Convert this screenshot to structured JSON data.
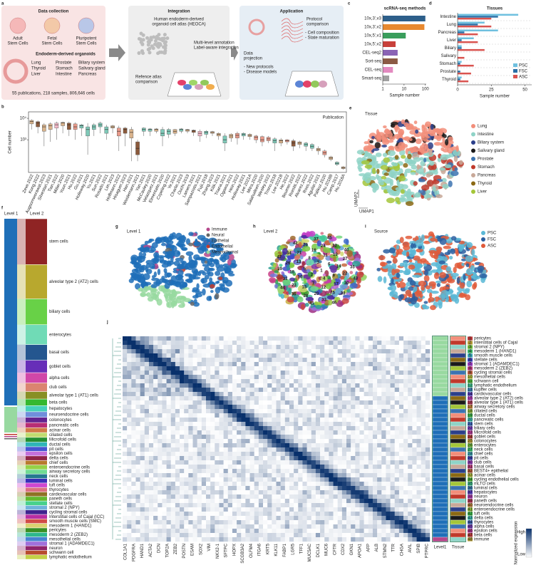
{
  "panel_labels": [
    "a",
    "b",
    "c",
    "d",
    "e",
    "f",
    "g",
    "h",
    "i",
    "j"
  ],
  "a": {
    "collection": {
      "title": "Data collection",
      "sources": [
        [
          "Adult",
          "Stem Cells"
        ],
        [
          "Fetal",
          "Stem Cells"
        ],
        [
          "Pluripotent",
          "Stem Cells"
        ]
      ],
      "organoids": "Endoderm-derived organoids",
      "tissue_columns": [
        [
          "Lung",
          "Thyroid",
          "Liver"
        ],
        [
          "Prostate",
          "Stomach",
          "Intestine"
        ],
        [
          "Biliary system",
          "Salivary gland",
          "Pancreas"
        ]
      ],
      "summary": "55 publications, 218 samples, 806,646 cells"
    },
    "integration": {
      "title": "Integration",
      "atlas": [
        "Human endoderm-derived",
        "organoid cell atlas (HEOCA)"
      ],
      "annotation": [
        "Multi-level annotation",
        "Label-aware integration"
      ],
      "comparison": [
        "Refence atlas",
        "comparison"
      ]
    },
    "application": {
      "title": "Application",
      "protocol": [
        "Protocol",
        "comparison"
      ],
      "protocol_items": [
        "- Cell composition",
        "- State maturation"
      ],
      "projection": [
        "Data",
        "projection"
      ],
      "projection_items": [
        "- New protocols",
        "- Disease models"
      ]
    }
  },
  "chart_data": [
    {
      "type": "hbar",
      "title": "scRNA-seq methods",
      "categories": [
        "10x,3',v3",
        "10x,3',v2",
        "10x,5',v1",
        "10x,5',v2",
        "CEL-seq2",
        "Sort-seq",
        "CEL-seq",
        "Smart-seq"
      ],
      "values": [
        100,
        90,
        12,
        4,
        5,
        5,
        3,
        2
      ],
      "colors": [
        "#2d5f8a",
        "#e8892f",
        "#3a9e5c",
        "#c8403a",
        "#8a63b5",
        "#8b5a44",
        "#e38ac0",
        "#a0a0a0"
      ],
      "xlabel": "Sample number",
      "xlim": [
        1,
        110
      ],
      "xticks": [
        1,
        10,
        100
      ],
      "log": true
    },
    {
      "type": "grouped_hbar",
      "title": "Tissues",
      "categories": [
        "Intestine",
        "Lung",
        "Pancreas",
        "Liver",
        "Biliary",
        "Salivary",
        "Stomach",
        "Prostate",
        "Thyroid"
      ],
      "series": [
        {
          "name": "PSC",
          "color": "#6fc0df",
          "values": [
            45,
            20,
            30,
            12,
            3,
            0,
            3,
            0,
            3
          ]
        },
        {
          "name": "FSC",
          "color": "#2a6fa6",
          "values": [
            30,
            15,
            5,
            3,
            3,
            0,
            2,
            2,
            2
          ]
        },
        {
          "name": "ASC",
          "color": "#d9534f",
          "values": [
            25,
            25,
            15,
            15,
            20,
            5,
            12,
            10,
            8
          ]
        }
      ],
      "xlabel": "Sample number",
      "xlim": [
        0,
        55
      ],
      "xticks": [
        0,
        25,
        50
      ],
      "legend": "lower right"
    },
    {
      "type": "box",
      "title": "Publication",
      "ylabel": "Cell number",
      "log": true,
      "ylim": [
        30,
        20000
      ],
      "yticks": [
        {
          "value": 1000,
          "label": "10³"
        },
        {
          "value": 10000,
          "label": "10⁴"
        }
      ],
      "categories": [
        "Zeve.2022",
        "Kong.2022",
        "Augsornworawat.2023",
        "Silvestari.2021",
        "Tian.2022",
        "Miller.2020",
        "Yoon.2021",
        "Hu.2022",
        "Gu.2021",
        "Holloway.2020",
        "Yu.2021",
        "Sun.2022",
        "Rosado.2021",
        "Lim.2023",
        "Hoffmann.2022",
        "Hisaguer.2023",
        "Han.2021",
        "Weidemann.2021",
        "Yan.2021",
        "McCauley.2020",
        "Velazquez.2021",
        "Elmentaite.2020",
        "Czpeling.2022",
        "Ye.2021",
        "Charlie.2023",
        "Ouchi.2019",
        "Lamers.2021",
        "Sampaziotis.2021",
        "Fujii.2018",
        "Zhang.2023",
        "Kilik.2021",
        "Triana.2021",
        "Ogawa.2021",
        "Hein.2022",
        "Holloway.2021",
        "Lee.2021A",
        "Mitra.2020",
        "Salahudeen.2020",
        "Wesley.2022",
        "Trisno.2018",
        "Lee.2021B",
        "He.2022",
        "Beumer.2022",
        "Romitti.2022",
        "Alvarez.2022",
        "Ross.2022",
        "Aguilar.2021",
        "Palikuz.2020",
        "Hu.2018B",
        "Camp.2017",
        "Hu.2018A"
      ],
      "boxes": [
        [
          3000,
          5500,
          7000,
          8000,
          9000
        ],
        [
          2000,
          4000,
          6000,
          7000,
          8000
        ],
        [
          500,
          2500,
          4000,
          5000,
          6000
        ],
        [
          800,
          3000,
          4500,
          5500,
          6500
        ],
        [
          1000,
          3500,
          5000,
          6000,
          7000
        ],
        [
          2000,
          4500,
          6000,
          6500,
          7000
        ],
        [
          1500,
          3000,
          5000,
          6000,
          7000
        ],
        [
          1000,
          3000,
          4000,
          5500,
          6500
        ],
        [
          1500,
          3500,
          4500,
          5000,
          5500
        ],
        [
          200,
          1500,
          3000,
          4000,
          6000
        ],
        [
          1500,
          3000,
          4000,
          5000,
          6000
        ],
        [
          2000,
          4000,
          5000,
          6000,
          7000
        ],
        [
          1000,
          2000,
          3000,
          4000,
          5000
        ],
        [
          2000,
          3500,
          4000,
          4500,
          5000
        ],
        [
          300,
          1500,
          2500,
          3500,
          4500
        ],
        [
          500,
          2000,
          3000,
          3500,
          4000
        ],
        [
          100,
          1200,
          2200,
          3000,
          4000
        ],
        [
          100,
          200,
          400,
          800,
          1000
        ],
        [
          1500,
          2500,
          3000,
          3500,
          3800
        ],
        [
          1500,
          2500,
          3000,
          3200,
          3500
        ],
        [
          2000,
          2500,
          3000,
          3200,
          3500
        ],
        [
          500,
          1500,
          2000,
          3000,
          4000
        ],
        [
          1200,
          1800,
          2500,
          3000,
          3500
        ],
        [
          1500,
          2000,
          2500,
          3000,
          3200
        ],
        [
          2000,
          2500,
          3000,
          3200,
          3500
        ],
        [
          2000,
          2500,
          2800,
          3000,
          3200
        ],
        [
          1500,
          2200,
          2600,
          2800,
          3000
        ],
        [
          800,
          1500,
          2000,
          2500,
          3000
        ],
        [
          1200,
          1800,
          2200,
          2500,
          2800
        ],
        [
          1500,
          2000,
          2200,
          2400,
          2600
        ],
        [
          1000,
          1500,
          1800,
          2000,
          2200
        ],
        [
          300,
          700,
          1000,
          1500,
          2000
        ],
        [
          800,
          1200,
          1500,
          1800,
          2000
        ],
        [
          600,
          1200,
          1600,
          2000,
          2400
        ],
        [
          1000,
          1500,
          1800,
          2000,
          2200
        ],
        [
          1000,
          1400,
          1600,
          1800,
          2000
        ],
        [
          700,
          1000,
          1300,
          1500,
          1700
        ],
        [
          500,
          800,
          1000,
          1400,
          1600
        ],
        [
          700,
          900,
          1100,
          1300,
          1500
        ],
        [
          300,
          700,
          900,
          1100,
          1300
        ],
        [
          500,
          700,
          900,
          1000,
          1200
        ],
        [
          600,
          800,
          900,
          1000,
          1100
        ],
        [
          300,
          500,
          700,
          900,
          1100
        ],
        [
          400,
          600,
          700,
          800,
          900
        ],
        [
          300,
          500,
          600,
          700,
          800
        ],
        [
          300,
          400,
          500,
          600,
          700
        ],
        [
          200,
          300,
          350,
          400,
          500
        ],
        [
          150,
          200,
          250,
          300,
          350
        ],
        [
          100,
          120,
          140,
          160,
          180
        ],
        [
          60,
          70,
          80,
          90,
          100
        ],
        [
          40,
          45,
          50,
          55,
          60
        ]
      ],
      "colors": [
        "#d9b38c",
        "#8b5a3c",
        "#d9b38c",
        "#d9b38c",
        "#f2b8c6",
        "#d9b38c",
        "#8b5a3c",
        "#e89a8a",
        "#7fc9b8",
        "#7fc9b8",
        "#7fc9b8",
        "#7fc9b8",
        "#7fc9b8",
        "#d9b38c",
        "#e89a8a",
        "#8b5a3c",
        "#d9b38c",
        "#8b5a3c",
        "#7fc9b8",
        "#7fc9b8",
        "#d9b38c",
        "#7fc9b8",
        "#7fc9b8",
        "#d9b38c",
        "#7fc9b8",
        "#d9b38c",
        "#8b5a3c",
        "#f2b8c6",
        "#7fc9b8",
        "#d9b38c",
        "#d9b38c",
        "#7fc9b8",
        "#d9b38c",
        "#e89a8a",
        "#7fc9b8",
        "#d9b38c",
        "#e89a8a",
        "#e89a8a",
        "#e89a8a",
        "#7fc9b8",
        "#d9b38c",
        "#e89a8a",
        "#8b5a3c",
        "#d9b38c",
        "#7fc9b8",
        "#7fc9b8",
        "#d9b38c",
        "#e89a8a",
        "#d9b38c",
        "#7fc9b8",
        "#d9b38c"
      ]
    }
  ],
  "e": {
    "title": "Tissue",
    "axes": [
      "UMAP1",
      "UMAP2"
    ],
    "legend": [
      {
        "name": "Lung",
        "color": "#f28e7a"
      },
      {
        "name": "Intestine",
        "color": "#8fd3c7"
      },
      {
        "name": "Biliary system",
        "color": "#2b3f8a"
      },
      {
        "name": "Salivary gland",
        "color": "#1a1a1a"
      },
      {
        "name": "Prostate",
        "color": "#3c73b0"
      },
      {
        "name": "Stomach",
        "color": "#c0392b"
      },
      {
        "name": "Pancreas",
        "color": "#c8a898"
      },
      {
        "name": "Thyroid",
        "color": "#8b6914"
      },
      {
        "name": "Liver",
        "color": "#a4c639"
      }
    ]
  },
  "f": {
    "level1": "Level 1",
    "level2": "Level 2",
    "level2_labels": [
      "stem cells",
      "alveolar type 2 (AT2) cells",
      "biliary cells",
      "enterocytes",
      "basal cells",
      "goblet cells",
      "alpha cells",
      "club cells",
      "alveolar type 1 (AT1) cells",
      "beta cells",
      "hepatocytes",
      "neuroendocrine cells",
      "colonocytes",
      "pancreatic cells",
      "acinar cells",
      "ciliated cells",
      "Microfold cells",
      "ductal cells",
      "pit cells",
      "epsilon cells",
      "delta cells",
      "chief cells",
      "enteroendocrine cells",
      "airway secretory cells",
      "neck cells",
      "luminal cells",
      "tuft cells",
      "thyrocytes",
      "cardiovascular cells",
      "paneth cells",
      "stellate cells",
      "stromal 2 (NPY)",
      "cycling stromal cells",
      "Interstitial cells of Cajal (ICC)",
      "smooth muscle cells (SMC)",
      "mesoderm 1 (HAND1)",
      "pericytes",
      "mesoderm 2 (ZEB2)",
      "mesothelial cells",
      "stromal 1 (ADAMDEC1)",
      "neuron",
      "schwann cell",
      "lymphatic endothelium"
    ]
  },
  "g": {
    "title": "Level 1",
    "legend": [
      {
        "name": "Immune",
        "color": "#b5478b"
      },
      {
        "name": "Neural",
        "color": "#666666"
      },
      {
        "name": "Epithelial",
        "color": "#1f6fb8"
      },
      {
        "name": "Endothelial",
        "color": "#c0392b"
      },
      {
        "name": "Mesenchymal",
        "color": "#98d9a0"
      }
    ]
  },
  "h": {
    "title": "Level 2",
    "clusters": [
      1,
      2,
      3,
      4,
      5,
      6,
      7,
      8,
      9,
      10,
      11,
      12,
      13,
      14,
      15,
      16,
      17,
      18,
      19,
      20,
      21,
      22,
      23,
      24,
      25,
      26,
      27,
      28,
      29,
      30,
      31,
      32,
      33,
      34,
      35,
      36,
      37,
      38,
      39,
      40,
      41,
      42,
      43,
      44,
      45,
      46,
      47
    ]
  },
  "i": {
    "title": "Source",
    "legend": [
      {
        "name": "PSC",
        "color": "#5bb8d6"
      },
      {
        "name": "FSC",
        "color": "#2a5ea0"
      },
      {
        "name": "ASC",
        "color": "#e05a3a"
      }
    ]
  },
  "j": {
    "genes": [
      "COL1A1",
      "PDGFRA",
      "HAND1",
      "ACTA2",
      "DCN",
      "TOP2A",
      "ZEB2",
      "POSTN",
      "ESAM",
      "SOX2",
      "VIM",
      "NKX2-1",
      "SFTPC",
      "HOPX",
      "SCGB3A2",
      "OLFM4",
      "ITGA6",
      "KRT5",
      "KLK11",
      "FABP1",
      "LGR5",
      "TFF1",
      "MUC5AC",
      "DCLK1",
      "MUC6",
      "CFTR",
      "CDX2",
      "GKN1",
      "APOA1",
      "AFP",
      "ALB",
      "STMN2",
      "TTR",
      "CHGA",
      "AVIL",
      "SPIB",
      "PTPRC"
    ],
    "columns": [
      "Level1",
      "Tissue"
    ],
    "colorbar": {
      "title": "Normalized expression",
      "high": "High",
      "low": "Low"
    },
    "cell_types": [
      {
        "id": 1,
        "name": "pericytes"
      },
      {
        "id": 2,
        "name": "interstitial cells of Cajal"
      },
      {
        "id": 3,
        "name": "stromal 2 (NPY)"
      },
      {
        "id": 4,
        "name": "mesoderm 1 (HAND1)"
      },
      {
        "id": 5,
        "name": "smooth muscle cells"
      },
      {
        "id": 6,
        "name": "stellate cells"
      },
      {
        "id": 7,
        "name": "stromal 1 (ADAMDEC1)"
      },
      {
        "id": 8,
        "name": "mesoderm 2 (ZEB2)"
      },
      {
        "id": 9,
        "name": "cycling stromal cells"
      },
      {
        "id": 10,
        "name": "mesothelial cells"
      },
      {
        "id": 11,
        "name": "schwann cell"
      },
      {
        "id": 12,
        "name": "lymphatic endothelium"
      },
      {
        "id": 13,
        "name": "kupffer cells"
      },
      {
        "id": 14,
        "name": "cardiovascular cells"
      },
      {
        "id": 15,
        "name": "alveolar type 2 (AT2) cells"
      },
      {
        "id": 16,
        "name": "alveolar type 1 (AT1) cells"
      },
      {
        "id": 17,
        "name": "airway secretory cells"
      },
      {
        "id": 18,
        "name": "ciliated cells"
      },
      {
        "id": 19,
        "name": "ductal cells"
      },
      {
        "id": 20,
        "name": "pancreatic cells"
      },
      {
        "id": 21,
        "name": "stem cells"
      },
      {
        "id": 22,
        "name": "biliary cells"
      },
      {
        "id": 23,
        "name": "Microfold cells"
      },
      {
        "id": 24,
        "name": "goblet cells"
      },
      {
        "id": 25,
        "name": "colonocytes"
      },
      {
        "id": 26,
        "name": "enterocytes"
      },
      {
        "id": 27,
        "name": "neck cells"
      },
      {
        "id": 28,
        "name": "chief cells"
      },
      {
        "id": 29,
        "name": "pit cells"
      },
      {
        "id": 30,
        "name": "club cells"
      },
      {
        "id": 31,
        "name": "basal cells"
      },
      {
        "id": 32,
        "name": "BEST4+ epithelial"
      },
      {
        "id": 33,
        "name": "acinar cells"
      },
      {
        "id": 34,
        "name": "cycling endothelial cells"
      },
      {
        "id": 35,
        "name": "mLTO cells"
      },
      {
        "id": 36,
        "name": "luminal cells"
      },
      {
        "id": 37,
        "name": "hepatocytes"
      },
      {
        "id": 38,
        "name": "neuron"
      },
      {
        "id": 39,
        "name": "paneth cells"
      },
      {
        "id": 40,
        "name": "neuroendocrine cells"
      },
      {
        "id": 41,
        "name": "enteroendocrine cells"
      },
      {
        "id": 42,
        "name": "tuft cells"
      },
      {
        "id": 43,
        "name": "delta cells"
      },
      {
        "id": 44,
        "name": "thyrocytes"
      },
      {
        "id": 45,
        "name": "alpha cells"
      },
      {
        "id": 46,
        "name": "epsilon cells"
      },
      {
        "id": 47,
        "name": "beta cells"
      },
      {
        "id": 48,
        "name": "immune"
      }
    ]
  }
}
